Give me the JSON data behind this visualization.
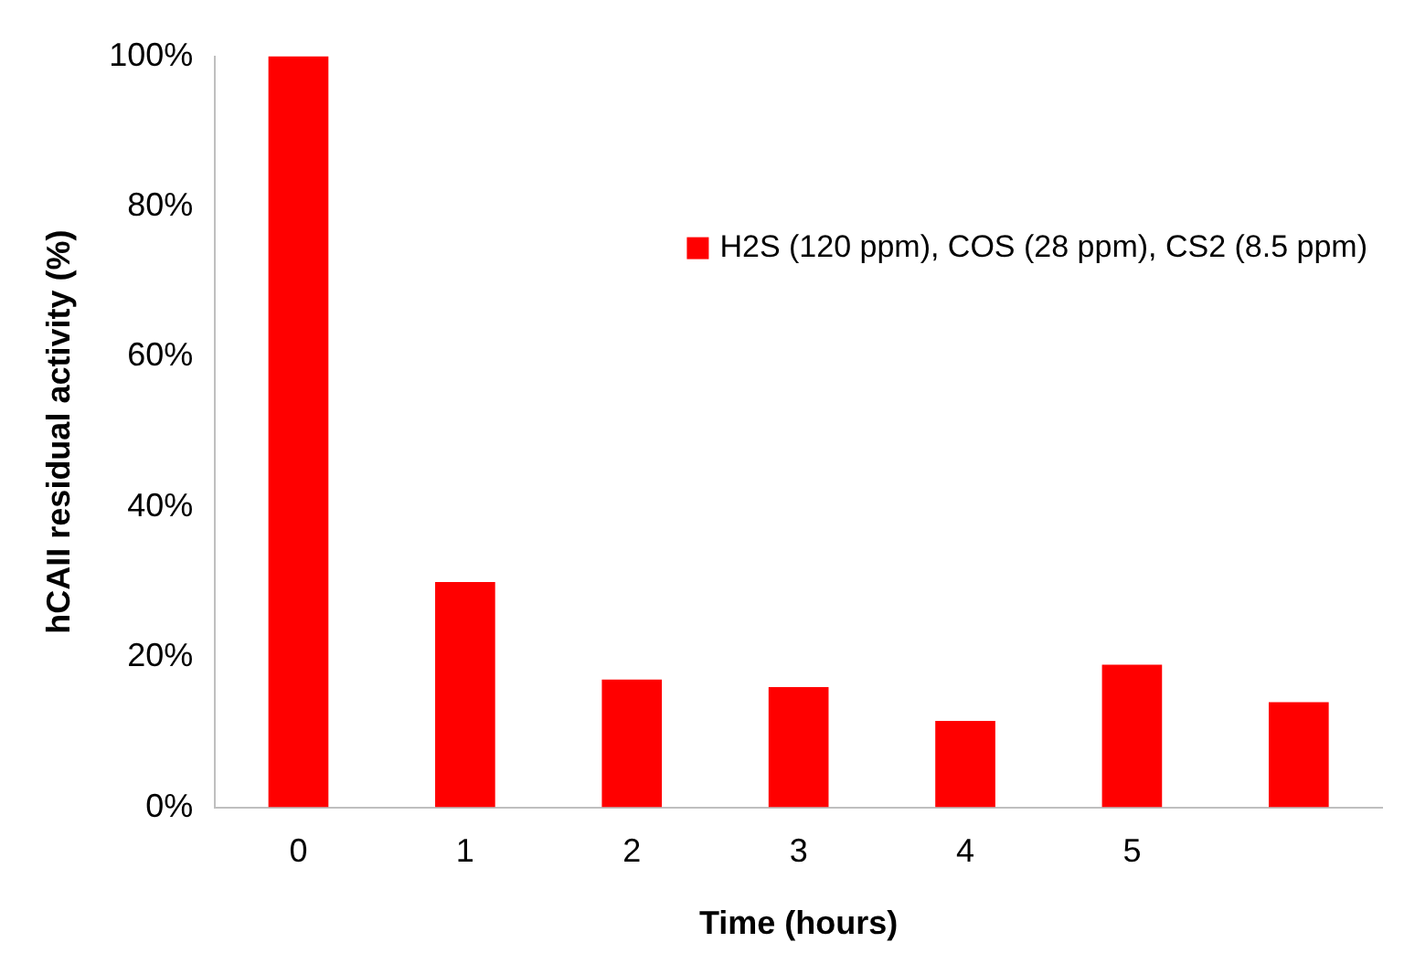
{
  "chart_data": {
    "type": "bar",
    "xlabel": "Time (hours)",
    "ylabel": "hCAII residual activity (%)",
    "categories": [
      "0",
      "1",
      "2",
      "3",
      "4",
      "5",
      null
    ],
    "series": [
      {
        "name": "H2S (120 ppm), COS (28 ppm), CS2 (8.5 ppm)",
        "color": "#ff0000",
        "values": [
          100,
          30,
          17,
          16,
          11.5,
          19,
          14
        ]
      }
    ],
    "ylim": [
      0,
      100
    ],
    "yticks": [
      {
        "value": 0,
        "label": "0%"
      },
      {
        "value": 20,
        "label": "20%"
      },
      {
        "value": 40,
        "label": "40%"
      },
      {
        "value": 60,
        "label": "60%"
      },
      {
        "value": 80,
        "label": "80%"
      },
      {
        "value": 100,
        "label": "100%"
      }
    ],
    "legend": "top right",
    "grid": false
  }
}
